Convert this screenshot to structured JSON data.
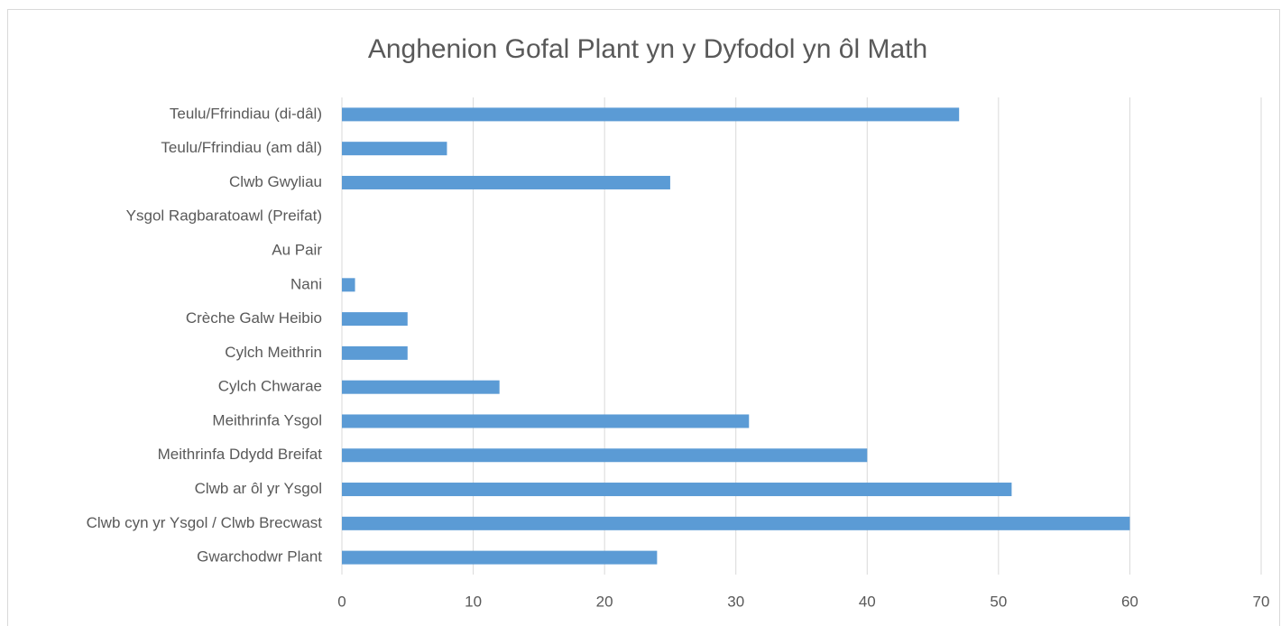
{
  "chart_data": {
    "type": "hbar",
    "title": "Anghenion Gofal Plant yn y Dyfodol yn ôl Math",
    "categories": [
      "Teulu/Ffrindiau (di-dâl)",
      "Teulu/Ffrindiau (am dâl)",
      "Clwb Gwyliau",
      "Ysgol Ragbaratoawl (Preifat)",
      "Au Pair",
      "Nani",
      "Crèche Galw Heibio",
      "Cylch Meithrin",
      "Cylch Chwarae",
      "Meithrinfa Ysgol",
      "Meithrinfa Ddydd Breifat",
      "Clwb ar ôl yr Ysgol",
      "Clwb cyn yr Ysgol / Clwb Brecwast",
      "Gwarchodwr Plant"
    ],
    "values": [
      47,
      8,
      25,
      0,
      0,
      1,
      5,
      5,
      12,
      31,
      40,
      51,
      60,
      24
    ],
    "color": "#5b9bd5",
    "xlim": [
      0,
      70
    ],
    "xticks": [
      0,
      10,
      20,
      30,
      40,
      50,
      60,
      70
    ],
    "grid": true
  }
}
